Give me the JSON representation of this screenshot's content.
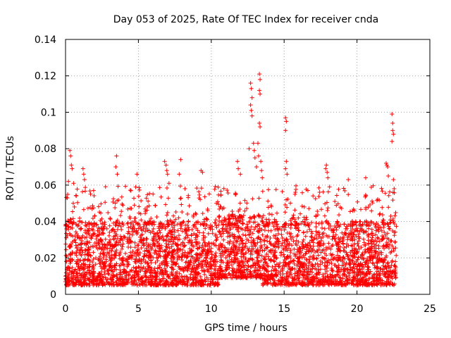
{
  "chart_data": {
    "type": "scatter",
    "title": "Day 053 of 2025, Rate Of TEC Index for receiver cnda",
    "xlabel": "GPS time / hours",
    "ylabel": "ROTI / TECUs",
    "xlim": [
      0,
      25
    ],
    "ylim": [
      0,
      0.14
    ],
    "xticks": [
      0,
      5,
      10,
      15,
      20,
      25
    ],
    "yticks": [
      0,
      0.02,
      0.04,
      0.06,
      0.08,
      0.1,
      0.12,
      0.14
    ],
    "xtick_labels": [
      "0",
      "5",
      "10",
      "15",
      "20",
      "25"
    ],
    "ytick_labels": [
      "0",
      "0.02",
      "0.04",
      "0.06",
      "0.08",
      "0.1",
      "0.12",
      "0.14"
    ],
    "grid": true,
    "marker": "+",
    "color": "#ff0000",
    "series": [
      {
        "name": "ROTI",
        "description": "Dense scatter of per-satellite ROTI values from 0 to ~22.7 h; bulk 0.005–0.04 TECU/min, frequent excursions to 0.05–0.07",
        "x_range": [
          0,
          22.7
        ],
        "dense_band": [
          0.005,
          0.04
        ],
        "outliers": [
          {
            "x": 0.3,
            "y": 0.079
          },
          {
            "x": 0.35,
            "y": 0.076
          },
          {
            "x": 0.4,
            "y": 0.071
          },
          {
            "x": 0.45,
            "y": 0.069
          },
          {
            "x": 0.2,
            "y": 0.062
          },
          {
            "x": 0.55,
            "y": 0.061
          },
          {
            "x": 1.2,
            "y": 0.069
          },
          {
            "x": 1.25,
            "y": 0.066
          },
          {
            "x": 1.3,
            "y": 0.063
          },
          {
            "x": 3.5,
            "y": 0.076
          },
          {
            "x": 3.45,
            "y": 0.07
          },
          {
            "x": 3.55,
            "y": 0.066
          },
          {
            "x": 4.9,
            "y": 0.066
          },
          {
            "x": 6.8,
            "y": 0.073
          },
          {
            "x": 6.9,
            "y": 0.071
          },
          {
            "x": 6.95,
            "y": 0.068
          },
          {
            "x": 7.0,
            "y": 0.066
          },
          {
            "x": 7.1,
            "y": 0.061
          },
          {
            "x": 7.9,
            "y": 0.074
          },
          {
            "x": 7.8,
            "y": 0.066
          },
          {
            "x": 9.3,
            "y": 0.068
          },
          {
            "x": 9.4,
            "y": 0.067
          },
          {
            "x": 11.8,
            "y": 0.073
          },
          {
            "x": 11.85,
            "y": 0.069
          },
          {
            "x": 12.0,
            "y": 0.066
          },
          {
            "x": 12.7,
            "y": 0.116
          },
          {
            "x": 12.75,
            "y": 0.113
          },
          {
            "x": 12.8,
            "y": 0.108
          },
          {
            "x": 12.7,
            "y": 0.104
          },
          {
            "x": 12.75,
            "y": 0.101
          },
          {
            "x": 12.8,
            "y": 0.098
          },
          {
            "x": 12.9,
            "y": 0.083
          },
          {
            "x": 12.95,
            "y": 0.079
          },
          {
            "x": 13.0,
            "y": 0.075
          },
          {
            "x": 12.6,
            "y": 0.08
          },
          {
            "x": 13.3,
            "y": 0.121
          },
          {
            "x": 13.35,
            "y": 0.118
          },
          {
            "x": 13.3,
            "y": 0.112
          },
          {
            "x": 13.35,
            "y": 0.11
          },
          {
            "x": 13.3,
            "y": 0.094
          },
          {
            "x": 13.35,
            "y": 0.092
          },
          {
            "x": 13.2,
            "y": 0.083
          },
          {
            "x": 13.25,
            "y": 0.076
          },
          {
            "x": 13.4,
            "y": 0.073
          },
          {
            "x": 13.1,
            "y": 0.07
          },
          {
            "x": 13.45,
            "y": 0.068
          },
          {
            "x": 13.5,
            "y": 0.064
          },
          {
            "x": 15.1,
            "y": 0.097
          },
          {
            "x": 15.15,
            "y": 0.095
          },
          {
            "x": 15.1,
            "y": 0.09
          },
          {
            "x": 15.15,
            "y": 0.073
          },
          {
            "x": 15.1,
            "y": 0.069
          },
          {
            "x": 15.2,
            "y": 0.066
          },
          {
            "x": 17.9,
            "y": 0.071
          },
          {
            "x": 17.85,
            "y": 0.069
          },
          {
            "x": 17.95,
            "y": 0.067
          },
          {
            "x": 18.0,
            "y": 0.064
          },
          {
            "x": 19.4,
            "y": 0.063
          },
          {
            "x": 20.6,
            "y": 0.064
          },
          {
            "x": 22.0,
            "y": 0.072
          },
          {
            "x": 22.05,
            "y": 0.071
          },
          {
            "x": 22.1,
            "y": 0.07
          },
          {
            "x": 22.15,
            "y": 0.065
          },
          {
            "x": 22.4,
            "y": 0.099
          },
          {
            "x": 22.45,
            "y": 0.094
          },
          {
            "x": 22.45,
            "y": 0.09
          },
          {
            "x": 22.5,
            "y": 0.088
          },
          {
            "x": 22.4,
            "y": 0.084
          },
          {
            "x": 22.5,
            "y": 0.063
          },
          {
            "x": 22.55,
            "y": 0.058
          }
        ]
      }
    ]
  }
}
